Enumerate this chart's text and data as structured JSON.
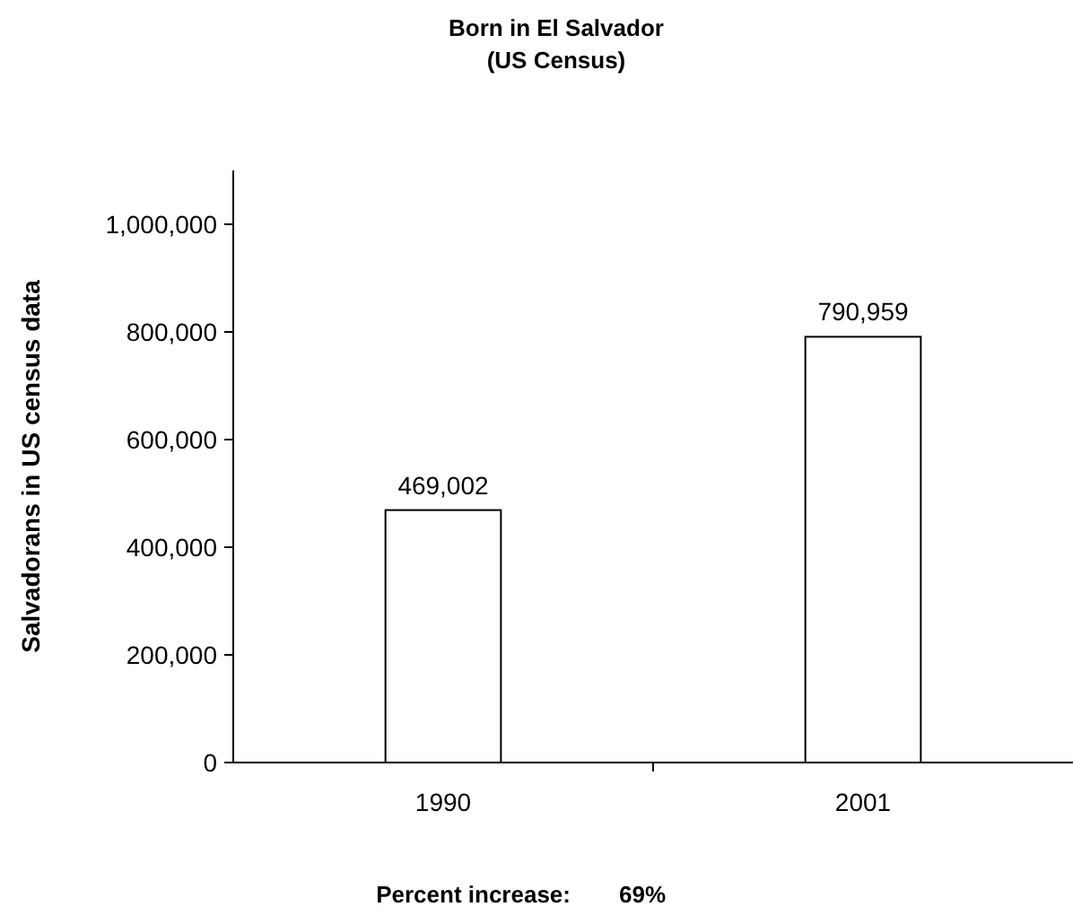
{
  "chart_data": {
    "type": "bar",
    "title": "Born in El Salvador",
    "subtitle": "(US Census)",
    "ylabel": "Salvadorans in US census data",
    "categories": [
      "1990",
      "2001"
    ],
    "values": [
      469002,
      790959
    ],
    "color": "#ffffff",
    "value_labels": [
      "469,002",
      "790,959"
    ],
    "ylim": [
      0,
      1100000
    ],
    "yticks": [
      0,
      {
        "value": 200000,
        "label": "200,000"
      },
      {
        "value": 400000,
        "label": "400,000"
      },
      {
        "value": 600000,
        "label": "600,000"
      },
      {
        "value": 800000,
        "label": "800,000"
      },
      {
        "value": 1000000,
        "label": "1,000,000"
      }
    ],
    "grid": false,
    "annotations": [
      "Percent increase:",
      "69%"
    ]
  }
}
